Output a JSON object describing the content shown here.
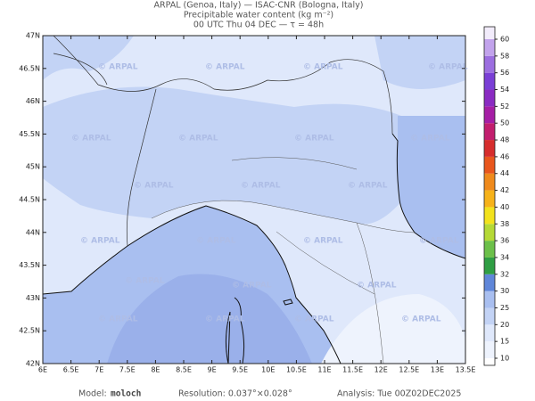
{
  "header": {
    "line1": "ARPAL (Genoa, Italy)  —  ISAC-CNR (Bologna, Italy)",
    "line2": "Precipitable water content (kg m⁻²)",
    "line3": "00 UTC Thu 04 DEC  —  τ = 48h"
  },
  "map": {
    "watermark": "© ARPAL",
    "lon_labels": [
      "6E",
      "6.5E",
      "7E",
      "7.5E",
      "8E",
      "8.5E",
      "9E",
      "9.5E",
      "10E",
      "10.5E",
      "11E",
      "11.5E",
      "12E",
      "12.5E",
      "13E",
      "13.5E"
    ],
    "lat_labels": [
      "42N",
      "42.5N",
      "43N",
      "43.5N",
      "44N",
      "44.5N",
      "45N",
      "45.5N",
      "46N",
      "46.5N",
      "47N"
    ]
  },
  "colorbar": {
    "labels": [
      10,
      15,
      20,
      25,
      30,
      32,
      34,
      36,
      38,
      40,
      42,
      44,
      46,
      48,
      50,
      52,
      54,
      56,
      58,
      60
    ],
    "colors": [
      "#eef3fd",
      "#dfe8fb",
      "#c3d3f5",
      "#a9bff0",
      "#5f86d9",
      "#2f9e44",
      "#6cc04a",
      "#b5d936",
      "#f2e21d",
      "#f6b21a",
      "#ef8a1c",
      "#e8561d",
      "#d62d2d",
      "#c21e6e",
      "#a51ea5",
      "#8a2bc2",
      "#7a3fd6",
      "#9c6ee0",
      "#c2a3ec",
      "#f2ecfb"
    ]
  },
  "footer": {
    "model_label": "Model:",
    "model": "moloch",
    "resolution": "Resolution: 0.037°×0.028°",
    "analysis": "Analysis: Tue 00Z02DEC2025"
  }
}
